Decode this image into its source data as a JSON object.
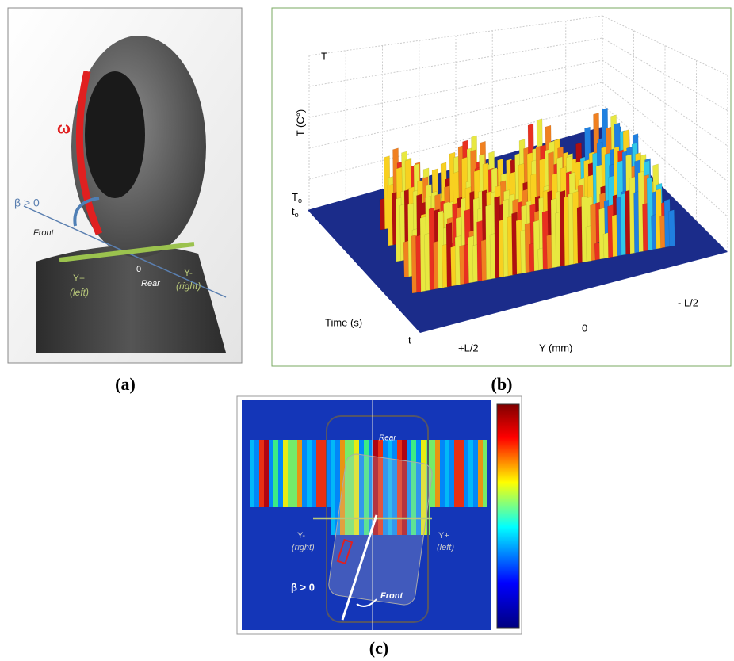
{
  "panel_a": {
    "omega": "ω",
    "beta": "β > 0",
    "front": "Front",
    "y_plus": "Y+",
    "left": "(left)",
    "zero": "0",
    "rear": "Rear",
    "y_minus": "Y-",
    "right": "(right)",
    "caption": "(a)"
  },
  "panel_b": {
    "t_top": "T",
    "t_axis": "T (C°)",
    "t0_main": "T",
    "t0_sub": "o",
    "time0_main": "t",
    "time0_sub": "o",
    "time_axis": "Time (s)",
    "t_end": "t",
    "plus_l2": "+L/2",
    "zero": "0",
    "minus_l2": "- L/2",
    "y_axis": "Y (mm)",
    "caption": "(b)"
  },
  "panel_c": {
    "rear": "Rear",
    "y_minus": "Y-",
    "right": "(right)",
    "y_plus": "Y+",
    "left": "(left)",
    "beta": "β > 0",
    "front": "Front",
    "caption": "(c)"
  }
}
